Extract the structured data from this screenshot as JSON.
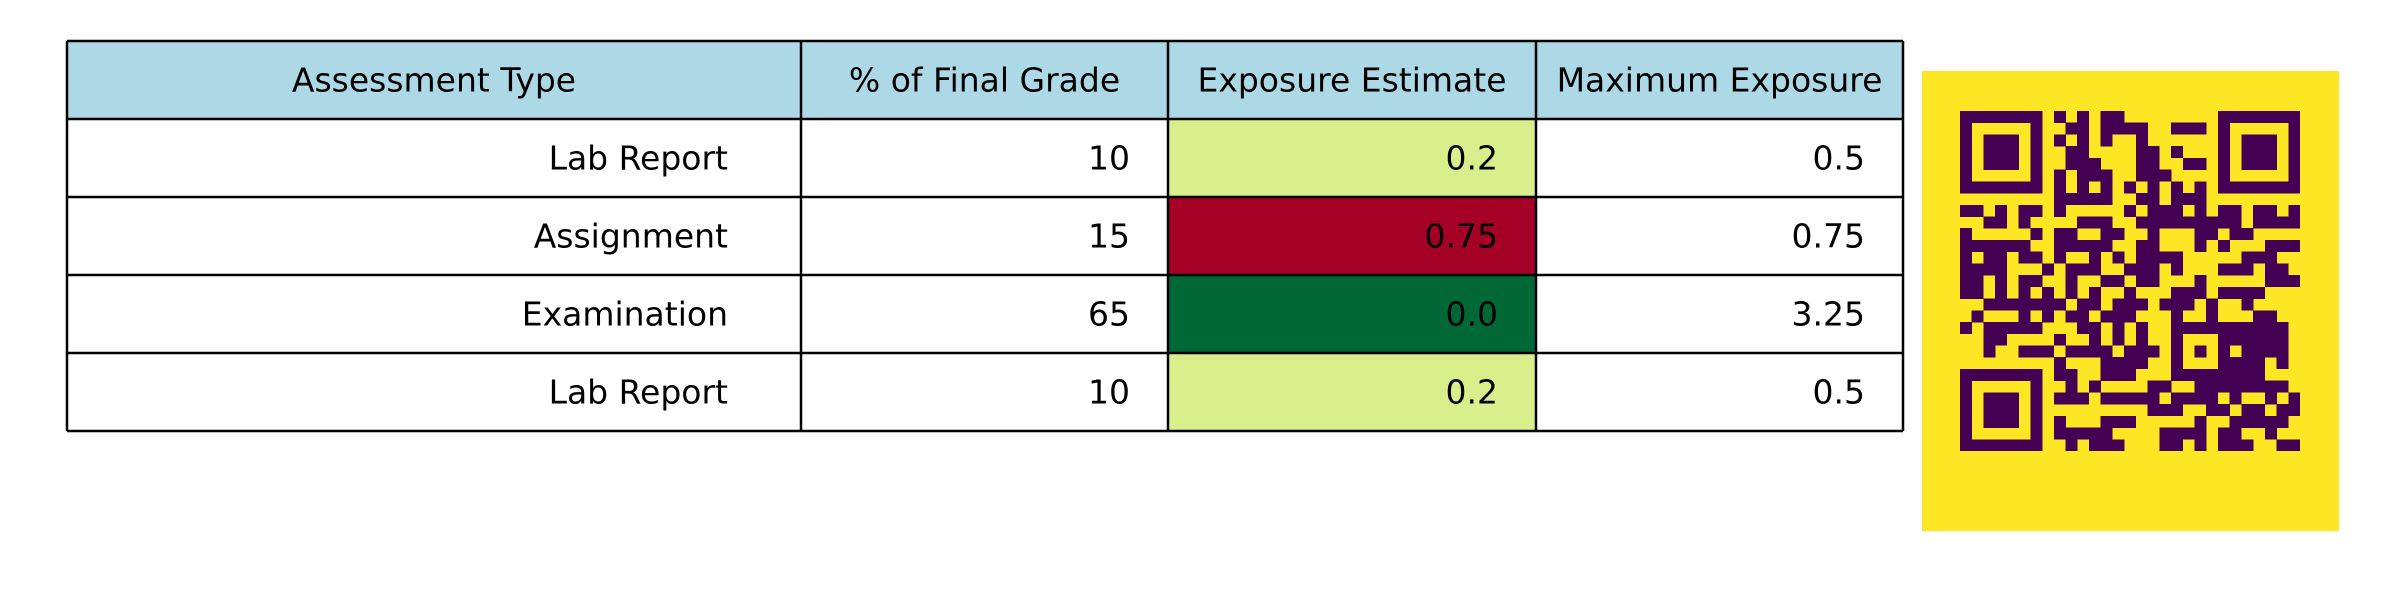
{
  "chart_data": {
    "type": "table",
    "columns": [
      "Assessment Type",
      "% of Final Grade",
      "Exposure Estimate",
      "Maximum Exposure"
    ],
    "rows": [
      [
        "Lab Report",
        "10",
        "0.2",
        "0.5"
      ],
      [
        "Assignment",
        "15",
        "0.75",
        "0.75"
      ],
      [
        "Examination",
        "65",
        "0.0",
        "3.25"
      ],
      [
        "Lab Report",
        "10",
        "0.2",
        "0.5"
      ]
    ],
    "exposure_cell_colors": [
      "#d9ef8b",
      "#a50026",
      "#006837",
      "#d9ef8b"
    ],
    "header_color": "#add8e6"
  },
  "qr_code": {
    "foreground": "#440154",
    "background": "#fde725"
  }
}
